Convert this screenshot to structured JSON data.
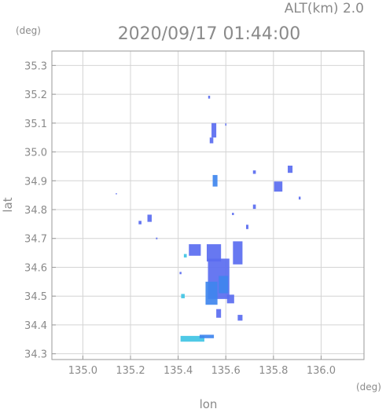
{
  "chart_data": {
    "type": "heatmap",
    "altitude_label": "ALT(km)  2.0",
    "title": "2020/09/17 01:44:00",
    "xlabel": "lon",
    "ylabel": "lat",
    "x_unit": "(deg)",
    "y_unit": "(deg)",
    "xlim": [
      134.87,
      136.18
    ],
    "ylim": [
      34.28,
      35.35
    ],
    "xticks": [
      135.0,
      135.2,
      135.4,
      135.6,
      135.8,
      136.0
    ],
    "xtick_labels": [
      "135.0",
      "135.2",
      "135.4",
      "135.6",
      "135.8",
      "136.0"
    ],
    "yticks": [
      34.3,
      34.4,
      34.5,
      34.6,
      34.7,
      34.8,
      34.9,
      35.0,
      35.1,
      35.2,
      35.3
    ],
    "ytick_labels": [
      "34.3",
      "34.4",
      "34.5",
      "34.6",
      "34.7",
      "34.8",
      "34.9",
      "35.0",
      "35.1",
      "35.2",
      "35.3"
    ],
    "grid": true,
    "colors": {
      "frame": "#9a9a9a",
      "grid": "#d4d4d4",
      "text": "#8a8a8a",
      "echo_weak": "#5a6cf0",
      "echo_mid": "#3f86ee",
      "echo_strong": "#40c4e4"
    },
    "echo_cells": [
      {
        "lon": 135.53,
        "lat": 35.19,
        "w": 0.008,
        "h": 0.01,
        "level": "weak"
      },
      {
        "lon": 135.55,
        "lat": 35.075,
        "w": 0.02,
        "h": 0.05,
        "level": "weak"
      },
      {
        "lon": 135.54,
        "lat": 35.04,
        "w": 0.015,
        "h": 0.02,
        "level": "weak"
      },
      {
        "lon": 135.6,
        "lat": 35.095,
        "w": 0.005,
        "h": 0.008,
        "level": "weak"
      },
      {
        "lon": 135.555,
        "lat": 34.9,
        "w": 0.02,
        "h": 0.04,
        "level": "mid"
      },
      {
        "lon": 135.72,
        "lat": 34.93,
        "w": 0.012,
        "h": 0.012,
        "level": "weak"
      },
      {
        "lon": 135.82,
        "lat": 34.88,
        "w": 0.035,
        "h": 0.035,
        "level": "weak"
      },
      {
        "lon": 135.87,
        "lat": 34.94,
        "w": 0.02,
        "h": 0.025,
        "level": "weak"
      },
      {
        "lon": 135.91,
        "lat": 34.84,
        "w": 0.008,
        "h": 0.01,
        "level": "weak"
      },
      {
        "lon": 135.72,
        "lat": 34.81,
        "w": 0.012,
        "h": 0.015,
        "level": "weak"
      },
      {
        "lon": 135.69,
        "lat": 34.74,
        "w": 0.01,
        "h": 0.015,
        "level": "weak"
      },
      {
        "lon": 135.63,
        "lat": 34.785,
        "w": 0.008,
        "h": 0.008,
        "level": "weak"
      },
      {
        "lon": 135.28,
        "lat": 34.77,
        "w": 0.018,
        "h": 0.025,
        "level": "weak"
      },
      {
        "lon": 135.24,
        "lat": 34.755,
        "w": 0.012,
        "h": 0.012,
        "level": "weak"
      },
      {
        "lon": 135.14,
        "lat": 34.855,
        "w": 0.004,
        "h": 0.004,
        "level": "weak"
      },
      {
        "lon": 135.31,
        "lat": 34.7,
        "w": 0.006,
        "h": 0.006,
        "level": "weak"
      },
      {
        "lon": 135.57,
        "lat": 34.56,
        "w": 0.09,
        "h": 0.14,
        "level": "weak"
      },
      {
        "lon": 135.55,
        "lat": 34.65,
        "w": 0.06,
        "h": 0.06,
        "level": "weak"
      },
      {
        "lon": 135.65,
        "lat": 34.65,
        "w": 0.04,
        "h": 0.08,
        "level": "weak"
      },
      {
        "lon": 135.47,
        "lat": 34.66,
        "w": 0.05,
        "h": 0.04,
        "level": "weak"
      },
      {
        "lon": 135.54,
        "lat": 34.51,
        "w": 0.05,
        "h": 0.08,
        "level": "mid"
      },
      {
        "lon": 135.59,
        "lat": 34.54,
        "w": 0.04,
        "h": 0.06,
        "level": "mid"
      },
      {
        "lon": 135.62,
        "lat": 34.49,
        "w": 0.03,
        "h": 0.03,
        "level": "weak"
      },
      {
        "lon": 135.57,
        "lat": 34.44,
        "w": 0.02,
        "h": 0.03,
        "level": "weak"
      },
      {
        "lon": 135.66,
        "lat": 34.425,
        "w": 0.02,
        "h": 0.02,
        "level": "weak"
      },
      {
        "lon": 135.42,
        "lat": 34.5,
        "w": 0.015,
        "h": 0.015,
        "level": "strong"
      },
      {
        "lon": 135.43,
        "lat": 34.64,
        "w": 0.012,
        "h": 0.012,
        "level": "strong"
      },
      {
        "lon": 135.41,
        "lat": 34.58,
        "w": 0.008,
        "h": 0.008,
        "level": "weak"
      },
      {
        "lon": 135.46,
        "lat": 34.352,
        "w": 0.1,
        "h": 0.02,
        "level": "strong"
      },
      {
        "lon": 135.52,
        "lat": 34.36,
        "w": 0.06,
        "h": 0.012,
        "level": "mid"
      }
    ]
  }
}
